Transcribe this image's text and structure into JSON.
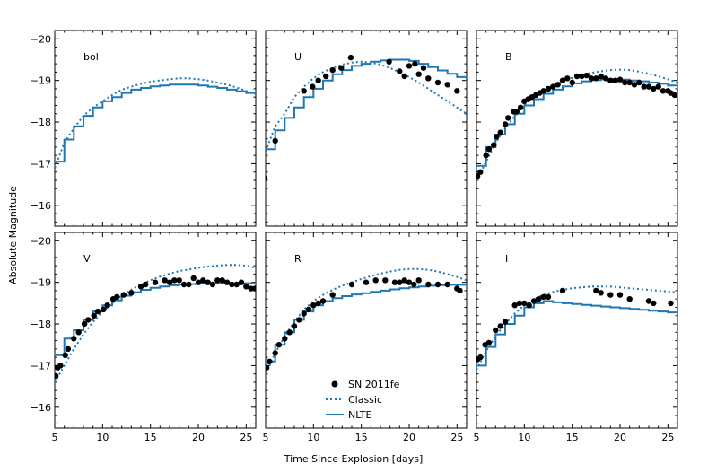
{
  "figure": {
    "xlabel": "Time Since Explosion [days]",
    "ylabel": "Absolute Magnitude"
  },
  "legend": {
    "observed_label": "SN 2011fe",
    "classic_label": "Classic",
    "nlte_label": "NLTE"
  },
  "colors": {
    "model": "#1f77b4",
    "observed": "#000000"
  },
  "chart_data": [
    {
      "type": "line",
      "panel_label": "bol",
      "xlim": [
        5,
        26
      ],
      "ylim": [
        -15.5,
        -20.2
      ],
      "xticks": [
        5,
        10,
        15,
        20,
        25
      ],
      "yticks": [
        -16,
        -17,
        -18,
        -19,
        -20
      ],
      "classic": {
        "x": [
          5,
          6,
          7,
          8,
          9,
          10,
          11,
          12,
          13,
          14,
          15,
          16,
          17,
          18,
          19,
          20,
          21,
          22,
          23,
          24,
          25,
          26
        ],
        "y": [
          -16.9,
          -17.5,
          -17.85,
          -18.15,
          -18.35,
          -18.5,
          -18.65,
          -18.78,
          -18.85,
          -18.92,
          -18.97,
          -19.0,
          -19.03,
          -19.05,
          -19.05,
          -19.03,
          -19.0,
          -18.95,
          -18.9,
          -18.83,
          -18.75,
          -18.68
        ]
      },
      "nlte": {
        "x": [
          5,
          6,
          7,
          8,
          9,
          10,
          11,
          12,
          13,
          14,
          15,
          16,
          17,
          18,
          19,
          20,
          21,
          22,
          23,
          24,
          25,
          26
        ],
        "y": [
          -17.05,
          -17.58,
          -17.9,
          -18.15,
          -18.35,
          -18.5,
          -18.6,
          -18.7,
          -18.78,
          -18.82,
          -18.86,
          -18.88,
          -18.9,
          -18.9,
          -18.9,
          -18.88,
          -18.85,
          -18.82,
          -18.78,
          -18.74,
          -18.7,
          -18.65
        ]
      },
      "observed": {
        "x": [],
        "y": []
      }
    },
    {
      "type": "line",
      "panel_label": "U",
      "xlim": [
        5,
        26
      ],
      "ylim": [
        -15.5,
        -20.2
      ],
      "xticks": [
        5,
        10,
        15,
        20,
        25
      ],
      "yticks": [
        -16,
        -17,
        -18,
        -19,
        -20
      ],
      "classic": {
        "x": [
          5,
          6,
          7,
          8,
          9,
          10,
          11,
          12,
          13,
          14,
          15,
          16,
          17,
          18,
          19,
          20,
          21,
          22,
          23,
          24,
          25,
          26
        ],
        "y": [
          -17.3,
          -17.9,
          -18.2,
          -18.6,
          -18.85,
          -19.05,
          -19.2,
          -19.3,
          -19.38,
          -19.43,
          -19.45,
          -19.43,
          -19.38,
          -19.3,
          -19.2,
          -19.08,
          -18.95,
          -18.8,
          -18.65,
          -18.5,
          -18.35,
          -18.2
        ]
      },
      "nlte": {
        "x": [
          5,
          6,
          7,
          8,
          9,
          10,
          11,
          12,
          13,
          14,
          15,
          16,
          17,
          18,
          19,
          20,
          21,
          22,
          23,
          24,
          25,
          26
        ],
        "y": [
          -17.35,
          -17.8,
          -18.1,
          -18.35,
          -18.6,
          -18.8,
          -19.0,
          -19.15,
          -19.25,
          -19.35,
          -19.4,
          -19.45,
          -19.48,
          -19.5,
          -19.5,
          -19.47,
          -19.4,
          -19.32,
          -19.24,
          -19.16,
          -19.08,
          -19.0
        ]
      },
      "observed": {
        "x": [
          4.9,
          6.0,
          9.0,
          9.9,
          10.5,
          11.3,
          12.0,
          12.9,
          13.9,
          17.9,
          19.0,
          19.5,
          20.0,
          20.6,
          21.0,
          21.5,
          22.0,
          23.0,
          24.0,
          25.0
        ],
        "y": [
          -16.65,
          -17.55,
          -18.75,
          -18.85,
          -19.0,
          -19.1,
          -19.25,
          -19.3,
          -19.55,
          -19.45,
          -19.22,
          -19.1,
          -19.35,
          -19.4,
          -19.15,
          -19.3,
          -19.05,
          -18.95,
          -18.9,
          -18.75
        ]
      }
    },
    {
      "type": "line",
      "panel_label": "B",
      "xlim": [
        5,
        26
      ],
      "ylim": [
        -15.5,
        -20.2
      ],
      "xticks": [
        5,
        10,
        15,
        20,
        25
      ],
      "yticks": [
        -16,
        -17,
        -18,
        -19,
        -20
      ],
      "classic": {
        "x": [
          5,
          6,
          7,
          8,
          9,
          10,
          11,
          12,
          13,
          14,
          15,
          16,
          17,
          18,
          19,
          20,
          21,
          22,
          23,
          24,
          25,
          26
        ],
        "y": [
          -16.6,
          -17.05,
          -17.5,
          -17.85,
          -18.15,
          -18.4,
          -18.6,
          -18.75,
          -18.88,
          -18.98,
          -19.06,
          -19.13,
          -19.18,
          -19.22,
          -19.25,
          -19.26,
          -19.25,
          -19.21,
          -19.16,
          -19.1,
          -19.03,
          -18.95
        ]
      },
      "nlte": {
        "x": [
          5,
          6,
          7,
          8,
          9,
          10,
          11,
          12,
          13,
          14,
          15,
          16,
          17,
          18,
          19,
          20,
          21,
          22,
          23,
          24,
          25,
          26
        ],
        "y": [
          -16.95,
          -17.4,
          -17.7,
          -17.95,
          -18.2,
          -18.4,
          -18.55,
          -18.68,
          -18.78,
          -18.86,
          -18.93,
          -18.98,
          -19.01,
          -19.03,
          -19.03,
          -19.02,
          -19.0,
          -18.98,
          -18.95,
          -18.92,
          -18.88,
          -18.85
        ]
      },
      "observed": {
        "x": [
          5.1,
          5.4,
          6.0,
          6.3,
          6.8,
          7.1,
          7.5,
          8.0,
          8.3,
          8.9,
          9.2,
          9.6,
          10.0,
          10.4,
          10.8,
          11.2,
          11.6,
          12.0,
          12.5,
          13.0,
          13.5,
          14.0,
          14.5,
          15.0,
          15.5,
          16.0,
          16.5,
          17.0,
          17.5,
          18.0,
          18.5,
          19.0,
          19.5,
          20.0,
          20.5,
          21.0,
          21.5,
          22.0,
          22.5,
          23.0,
          23.5,
          24.0,
          24.5,
          25.0,
          25.3,
          25.7
        ],
        "y": [
          -16.7,
          -16.8,
          -17.2,
          -17.35,
          -17.45,
          -17.65,
          -17.75,
          -17.95,
          -18.1,
          -18.25,
          -18.25,
          -18.35,
          -18.5,
          -18.55,
          -18.6,
          -18.65,
          -18.7,
          -18.75,
          -18.8,
          -18.85,
          -18.9,
          -19.0,
          -19.05,
          -18.95,
          -19.1,
          -19.1,
          -19.12,
          -19.05,
          -19.05,
          -19.1,
          -19.05,
          -19.0,
          -19.0,
          -19.02,
          -18.95,
          -18.95,
          -18.9,
          -18.95,
          -18.85,
          -18.85,
          -18.8,
          -18.85,
          -18.75,
          -18.75,
          -18.7,
          -18.65
        ]
      }
    },
    {
      "type": "line",
      "panel_label": "V",
      "xlim": [
        5,
        26
      ],
      "ylim": [
        -15.5,
        -20.2
      ],
      "xticks": [
        5,
        10,
        15,
        20,
        25
      ],
      "yticks": [
        -16,
        -17,
        -18,
        -19,
        -20
      ],
      "classic": {
        "x": [
          5,
          6,
          7,
          8,
          9,
          10,
          11,
          12,
          13,
          14,
          15,
          16,
          17,
          18,
          19,
          20,
          21,
          22,
          23,
          24,
          25,
          26
        ],
        "y": [
          -16.6,
          -17.0,
          -17.4,
          -17.75,
          -18.05,
          -18.3,
          -18.5,
          -18.68,
          -18.82,
          -18.95,
          -19.05,
          -19.14,
          -19.21,
          -19.27,
          -19.31,
          -19.35,
          -19.38,
          -19.4,
          -19.42,
          -19.42,
          -19.4,
          -19.35
        ]
      },
      "nlte": {
        "x": [
          5,
          6,
          7,
          8,
          9,
          10,
          11,
          12,
          13,
          14,
          15,
          16,
          17,
          18,
          19,
          20,
          21,
          22,
          23,
          24,
          25,
          26
        ],
        "y": [
          -17.25,
          -17.65,
          -17.85,
          -18.1,
          -18.3,
          -18.45,
          -18.57,
          -18.68,
          -18.76,
          -18.82,
          -18.87,
          -18.9,
          -18.93,
          -18.95,
          -18.96,
          -18.97,
          -18.98,
          -18.98,
          -18.98,
          -18.98,
          -18.98,
          -18.98
        ]
      },
      "observed": {
        "x": [
          5.1,
          5.3,
          5.6,
          6.1,
          6.4,
          7.0,
          7.5,
          8.1,
          8.5,
          9.1,
          9.5,
          10.1,
          10.5,
          11.1,
          11.5,
          12.2,
          13.0,
          14.0,
          14.5,
          15.5,
          16.5,
          17.0,
          17.5,
          18.0,
          18.5,
          19.0,
          19.5,
          20.0,
          20.5,
          21.0,
          21.5,
          22.0,
          22.5,
          23.0,
          23.5,
          24.0,
          24.5,
          25.0,
          25.5,
          25.9
        ],
        "y": [
          -16.75,
          -16.95,
          -17.0,
          -17.25,
          -17.4,
          -17.65,
          -17.8,
          -18.0,
          -18.1,
          -18.2,
          -18.3,
          -18.35,
          -18.45,
          -18.6,
          -18.65,
          -18.7,
          -18.75,
          -18.9,
          -18.95,
          -19.0,
          -19.05,
          -19.0,
          -19.05,
          -19.05,
          -18.95,
          -18.95,
          -19.1,
          -19.0,
          -19.05,
          -19.0,
          -18.95,
          -19.05,
          -19.05,
          -19.0,
          -18.95,
          -18.95,
          -19.0,
          -18.9,
          -18.85,
          -18.85
        ]
      }
    },
    {
      "type": "line",
      "panel_label": "R",
      "xlim": [
        5,
        26
      ],
      "ylim": [
        -15.5,
        -20.2
      ],
      "xticks": [
        5,
        10,
        15,
        20,
        25
      ],
      "yticks": [
        -16,
        -17,
        -18,
        -19,
        -20
      ],
      "classic": {
        "x": [
          5,
          6,
          7,
          8,
          9,
          10,
          11,
          12,
          13,
          14,
          15,
          16,
          17,
          18,
          19,
          20,
          21,
          22,
          23,
          24,
          25,
          26
        ],
        "y": [
          -16.8,
          -17.3,
          -17.7,
          -18.05,
          -18.35,
          -18.55,
          -18.7,
          -18.82,
          -18.92,
          -19.0,
          -19.08,
          -19.15,
          -19.21,
          -19.26,
          -19.3,
          -19.32,
          -19.32,
          -19.3,
          -19.26,
          -19.2,
          -19.13,
          -19.05
        ]
      },
      "nlte": {
        "x": [
          5,
          6,
          7,
          8,
          9,
          10,
          11,
          12,
          13,
          14,
          15,
          16,
          17,
          18,
          19,
          20,
          21,
          22,
          23,
          24,
          25,
          26
        ],
        "y": [
          -17.1,
          -17.5,
          -17.8,
          -18.1,
          -18.3,
          -18.45,
          -18.55,
          -18.62,
          -18.67,
          -18.71,
          -18.74,
          -18.77,
          -18.8,
          -18.83,
          -18.86,
          -18.88,
          -18.9,
          -18.92,
          -18.93,
          -18.94,
          -18.94,
          -18.94
        ]
      },
      "observed": {
        "x": [
          5.1,
          5.4,
          6.0,
          6.4,
          7.0,
          7.5,
          8.0,
          8.5,
          9.0,
          9.5,
          10.0,
          10.5,
          11.0,
          12.0,
          14.0,
          15.5,
          16.5,
          17.5,
          18.5,
          19.0,
          19.5,
          20.0,
          20.5,
          21.0,
          22.0,
          23.0,
          24.0,
          25.0,
          25.3
        ],
        "y": [
          -16.95,
          -17.1,
          -17.3,
          -17.5,
          -17.65,
          -17.8,
          -17.95,
          -18.1,
          -18.25,
          -18.35,
          -18.45,
          -18.5,
          -18.55,
          -18.7,
          -18.95,
          -19.0,
          -19.05,
          -19.05,
          -19.0,
          -19.0,
          -19.05,
          -19.0,
          -18.95,
          -19.05,
          -18.95,
          -18.95,
          -18.95,
          -18.85,
          -18.8
        ]
      }
    },
    {
      "type": "line",
      "panel_label": "I",
      "xlim": [
        5,
        26
      ],
      "ylim": [
        -15.5,
        -20.2
      ],
      "xticks": [
        5,
        10,
        15,
        20,
        25
      ],
      "yticks": [
        -16,
        -17,
        -18,
        -19,
        -20
      ],
      "classic": {
        "x": [
          5,
          6,
          7,
          8,
          9,
          10,
          11,
          12,
          13,
          14,
          15,
          16,
          17,
          18,
          19,
          20,
          21,
          22,
          23,
          24,
          25,
          26
        ],
        "y": [
          -16.9,
          -17.35,
          -17.7,
          -18.0,
          -18.25,
          -18.45,
          -18.6,
          -18.7,
          -18.77,
          -18.82,
          -18.86,
          -18.88,
          -18.9,
          -18.9,
          -18.9,
          -18.88,
          -18.86,
          -18.84,
          -18.82,
          -18.8,
          -18.78,
          -18.76
        ]
      },
      "nlte": {
        "x": [
          5,
          6,
          7,
          8,
          9,
          10,
          11,
          12,
          13,
          14,
          15,
          16,
          17,
          18,
          19,
          20,
          21,
          22,
          23,
          24,
          25,
          26
        ],
        "y": [
          -17.0,
          -17.45,
          -17.75,
          -18.0,
          -18.2,
          -18.4,
          -18.5,
          -18.55,
          -18.52,
          -18.5,
          -18.48,
          -18.46,
          -18.44,
          -18.42,
          -18.4,
          -18.38,
          -18.36,
          -18.34,
          -18.32,
          -18.3,
          -18.28,
          -18.26
        ]
      },
      "observed": {
        "x": [
          5.1,
          5.4,
          5.9,
          6.3,
          7.0,
          7.5,
          8.0,
          9.0,
          9.5,
          10.0,
          10.5,
          11.0,
          11.5,
          12.0,
          12.5,
          14.0,
          17.5,
          18.0,
          19.0,
          20.0,
          21.0,
          23.0,
          23.5,
          25.3
        ],
        "y": [
          -17.15,
          -17.2,
          -17.5,
          -17.55,
          -17.85,
          -17.95,
          -18.05,
          -18.45,
          -18.5,
          -18.5,
          -18.45,
          -18.55,
          -18.6,
          -18.65,
          -18.65,
          -18.8,
          -18.8,
          -18.75,
          -18.7,
          -18.7,
          -18.6,
          -18.55,
          -18.5,
          -18.5
        ]
      }
    }
  ]
}
